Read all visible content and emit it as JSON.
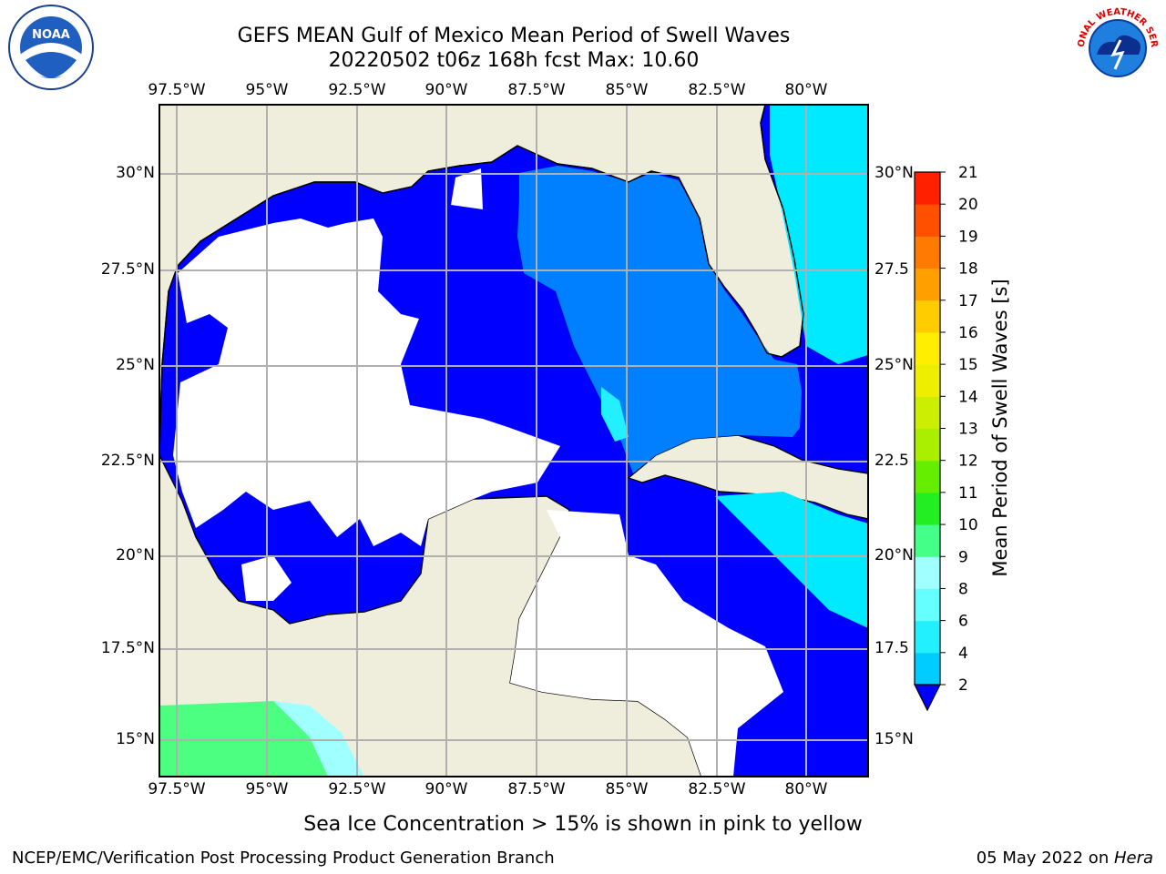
{
  "title": {
    "line1": "GEFS MEAN Gulf of Mexico Mean Period of Swell Waves",
    "line2": "20220502 t06z 168h fcst   Max: 10.60"
  },
  "map": {
    "lon_ticks": [
      "97.5°W",
      "95°W",
      "92.5°W",
      "90°W",
      "87.5°W",
      "85°W",
      "82.5°W",
      "80°W"
    ],
    "lat_ticks_left": [
      "30°N",
      "27.5°N",
      "25°N",
      "22.5°N",
      "20°N",
      "17.5°N",
      "15°N"
    ],
    "lat_ticks_right": [
      "30°N",
      "27.5",
      "25°N",
      "22.5",
      "20°N",
      "17.5",
      "15°N"
    ],
    "colors": {
      "land": "#efeedd",
      "ocean_dark": "#0000ff",
      "ocean_mid": "#0080ff",
      "ocean_light": "#00eaff",
      "swell_low": "#4cff80",
      "grid": "#b0b0b0"
    }
  },
  "colorbar": {
    "label": "Mean Period of Swell Waves [s]",
    "ticks": [
      "2",
      "4",
      "6",
      "8",
      "9",
      "10",
      "11",
      "12",
      "13",
      "14",
      "15",
      "16",
      "17",
      "18",
      "19",
      "20",
      "21"
    ],
    "colors": [
      "#0070ff",
      "#00ccff",
      "#22f0ff",
      "#66ffff",
      "#a0ffff",
      "#44ff88",
      "#22ee22",
      "#66ee00",
      "#aaee00",
      "#ccee00",
      "#eeee00",
      "#ffee00",
      "#ffcc00",
      "#ffa000",
      "#ff7a00",
      "#ff5000",
      "#ff2000",
      "#ff0000"
    ]
  },
  "footer": {
    "sea_ice_note": "Sea Ice Concentration > 15% is shown in pink to yellow",
    "branch": "NCEP/EMC/Verification Post Processing Product Generation Branch",
    "date": "05 May 2022 on ",
    "host": "Hera"
  },
  "logos": {
    "left": "NOAA",
    "right": "NATIONAL WEATHER SERVICE"
  }
}
